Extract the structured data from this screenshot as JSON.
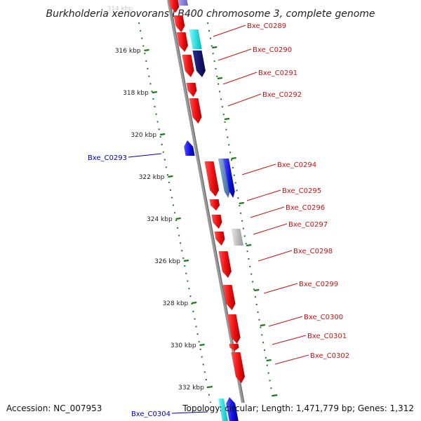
{
  "title": "Burkholderia xenovorans LB400 chromosome 3, complete genome",
  "footer": {
    "accession": "Accession: NC_007953",
    "summary": "Topology: circular; Length: 1,471,779 bp; Genes: 1,312"
  },
  "colors": {
    "backbone": "#888888",
    "tick": "#1a7a1a",
    "forward_gene": "#ee1111",
    "reverse_gene": "#1111cc",
    "forward_label": "#cc1111",
    "reverse_label": "#0000bb"
  },
  "ticks": [
    {
      "label": "314 kbp"
    },
    {
      "label": "316 kbp"
    },
    {
      "label": "318 kbp"
    },
    {
      "label": "320 kbp"
    },
    {
      "label": "322 kbp"
    },
    {
      "label": "324 kbp"
    },
    {
      "label": "326 kbp"
    },
    {
      "label": "328 kbp"
    },
    {
      "label": "330 kbp"
    },
    {
      "label": "332 kbp"
    }
  ],
  "gene_labels": [
    {
      "text": "Bxe_C0289",
      "strand": "forward"
    },
    {
      "text": "Bxe_C0290",
      "strand": "forward"
    },
    {
      "text": "Bxe_C0291",
      "strand": "forward"
    },
    {
      "text": "Bxe_C0292",
      "strand": "forward"
    },
    {
      "text": "Bxe_C0293",
      "strand": "reverse"
    },
    {
      "text": "Bxe_C0294",
      "strand": "forward"
    },
    {
      "text": "Bxe_C0295",
      "strand": "forward"
    },
    {
      "text": "Bxe_C0296",
      "strand": "forward"
    },
    {
      "text": "Bxe_C0297",
      "strand": "forward"
    },
    {
      "text": "Bxe_C0298",
      "strand": "forward"
    },
    {
      "text": "Bxe_C0299",
      "strand": "forward"
    },
    {
      "text": "Bxe_C0300",
      "strand": "forward"
    },
    {
      "text": "Bxe_C0301",
      "strand": "forward"
    },
    {
      "text": "Bxe_C0302",
      "strand": "forward"
    },
    {
      "text": "Bxe_C0304",
      "strand": "reverse"
    }
  ]
}
